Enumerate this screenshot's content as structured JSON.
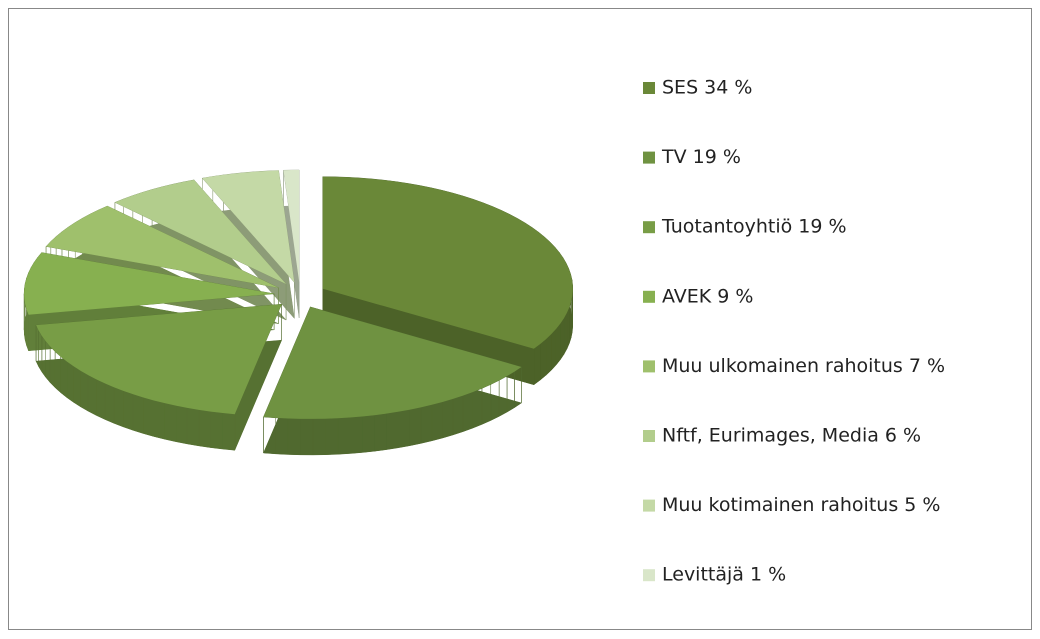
{
  "chart_data": {
    "type": "pie3d",
    "categories": [
      "SES 34 %",
      "TV 19 %",
      "Tuotantoyhtiö 19 %",
      "AVEK 9 %",
      "Muu ulkomainen rahoitus 7 %",
      "Nftf, Eurimages,  Media 6 %",
      "Muu kotimainen rahoitus 5 %",
      "Levittäjä 1 %"
    ],
    "values": [
      34,
      19,
      19,
      9,
      7,
      6,
      5,
      1
    ],
    "colors": [
      "#6a8838",
      "#6f9241",
      "#789d46",
      "#87b050",
      "#9fc06c",
      "#b2cd8c",
      "#c4d9a6",
      "#d9e6c9"
    ],
    "legend": "right"
  }
}
